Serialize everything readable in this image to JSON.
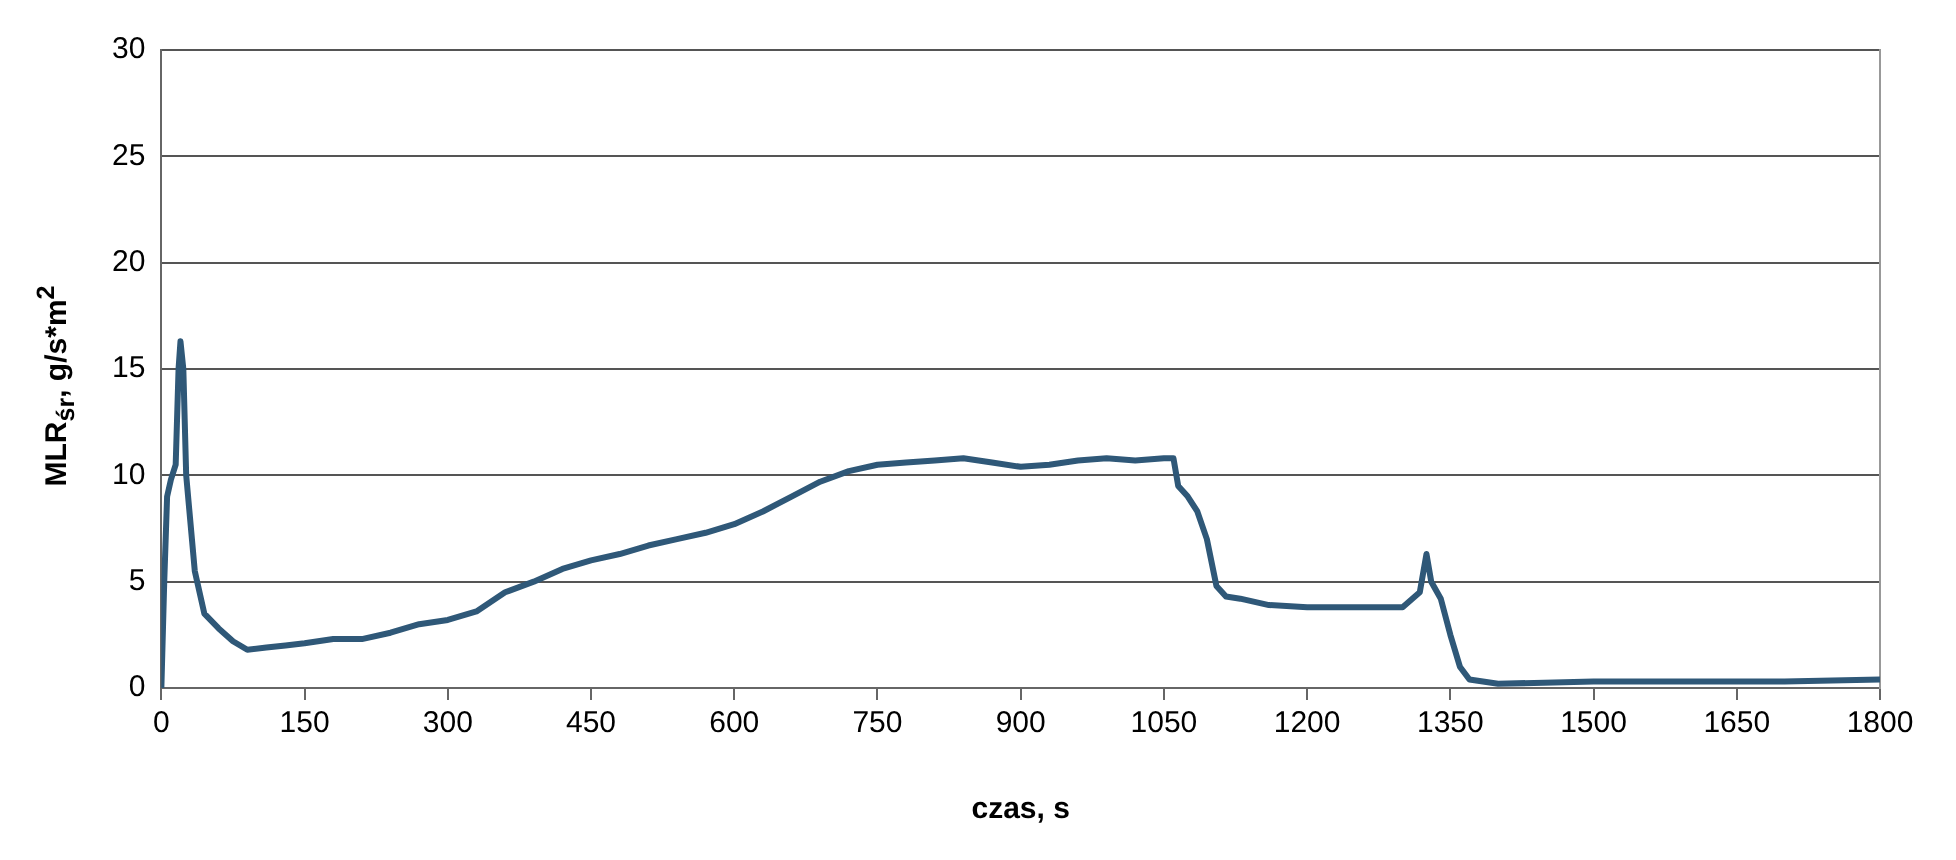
{
  "chart_data": {
    "type": "line",
    "xlabel": "czas, s",
    "ylabel": "MLR$_{śr}$, g/s*m$^{2}$",
    "series": [
      {
        "color": "#2f5878",
        "x": [
          0,
          3,
          6,
          10,
          15,
          18,
          20,
          23,
          26,
          30,
          35,
          45,
          60,
          75,
          90,
          110,
          130,
          150,
          180,
          210,
          240,
          270,
          300,
          330,
          360,
          390,
          420,
          450,
          480,
          510,
          540,
          570,
          600,
          630,
          660,
          690,
          720,
          750,
          780,
          810,
          840,
          870,
          900,
          930,
          960,
          990,
          1020,
          1050,
          1060,
          1065,
          1075,
          1085,
          1095,
          1105,
          1115,
          1130,
          1160,
          1200,
          1240,
          1270,
          1300,
          1318,
          1325,
          1330,
          1340,
          1350,
          1360,
          1370,
          1400,
          1500,
          1600,
          1700,
          1800
        ],
        "values": [
          0,
          5,
          9,
          9.8,
          10.5,
          15,
          16.3,
          15,
          10,
          8,
          5.5,
          3.5,
          2.8,
          2.2,
          1.8,
          1.9,
          2,
          2.1,
          2.3,
          2.3,
          2.6,
          3,
          3.2,
          3.6,
          4.5,
          5,
          5.6,
          6,
          6.3,
          6.7,
          7,
          7.3,
          7.7,
          8.3,
          9,
          9.7,
          10.2,
          10.5,
          10.6,
          10.7,
          10.8,
          10.6,
          10.4,
          10.5,
          10.7,
          10.8,
          10.7,
          10.8,
          10.8,
          9.5,
          9,
          8.3,
          7,
          4.8,
          4.3,
          4.2,
          3.9,
          3.8,
          3.8,
          3.8,
          3.8,
          4.5,
          6.3,
          5,
          4.2,
          2.5,
          1,
          0.4,
          0.2,
          0.3,
          0.3,
          0.3,
          0.4
        ]
      }
    ],
    "xlim": [
      0,
      1800
    ],
    "xticks": [
      0,
      150,
      300,
      450,
      600,
      750,
      900,
      1050,
      1200,
      1350,
      1500,
      1650,
      1800
    ],
    "ylim": [
      0,
      30
    ],
    "yticks": [
      0,
      5,
      10,
      15,
      20,
      25,
      30
    ],
    "grid": "y",
    "legend": false,
    "marker": "none",
    "line_style": "solid"
  }
}
